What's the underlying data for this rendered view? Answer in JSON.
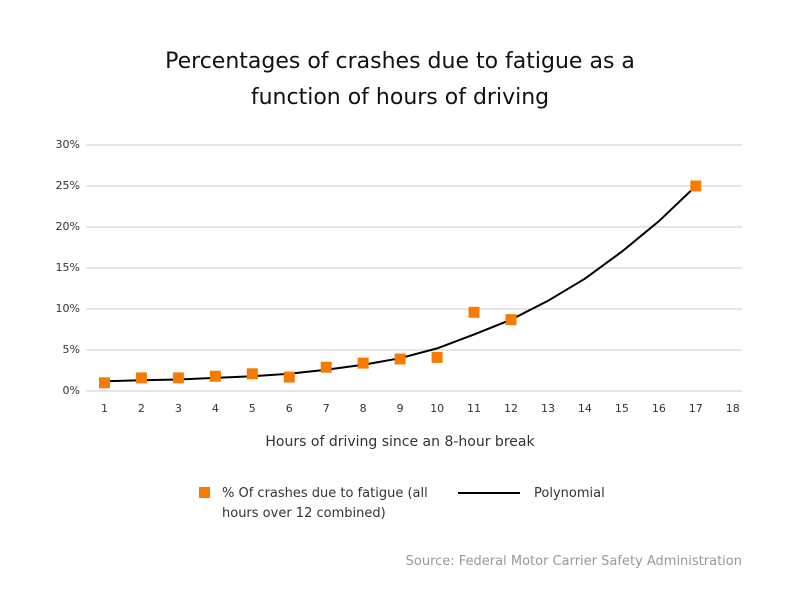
{
  "chart_data": {
    "type": "scatter",
    "title": "Percentages of crashes due to fatigue as a function of hours of driving",
    "x_label": "Hours of driving since an 8-hour break",
    "source": "Source: Federal Motor Carrier Safety Administration",
    "xlim": [
      0.5,
      18.25
    ],
    "xticks": [
      1,
      2,
      3,
      4,
      5,
      6,
      7,
      8,
      9,
      10,
      11,
      12,
      13,
      14,
      15,
      16,
      17,
      18
    ],
    "ylim": [
      0,
      30
    ],
    "yticks": [
      {
        "value": 0,
        "label": "0%"
      },
      {
        "value": 5,
        "label": "5%"
      },
      {
        "value": 10,
        "label": "10%"
      },
      {
        "value": 15,
        "label": "15%"
      },
      {
        "value": 20,
        "label": "20%"
      },
      {
        "value": 25,
        "label": "25%"
      },
      {
        "value": 30,
        "label": "30%"
      }
    ],
    "grid": true,
    "series": [
      {
        "name": "% Of crashes due to fatigue (all hours over 12 combined)",
        "type": "scatter",
        "color": "#f57c00",
        "x": [
          1,
          2,
          3,
          4,
          5,
          6,
          7,
          8,
          9,
          10,
          11,
          12,
          17
        ],
        "values": [
          1.0,
          1.6,
          1.6,
          1.8,
          2.1,
          1.7,
          2.9,
          3.4,
          3.9,
          4.1,
          9.6,
          8.7,
          25.0
        ]
      },
      {
        "name": "Polynomial",
        "type": "line",
        "color": "#000000",
        "x": [
          1,
          2,
          3,
          4,
          5,
          6,
          7,
          8,
          9,
          10,
          11,
          12,
          13,
          14,
          15,
          16,
          17
        ],
        "values": [
          1.2,
          1.3,
          1.4,
          1.6,
          1.8,
          2.1,
          2.6,
          3.2,
          4.0,
          5.2,
          6.9,
          8.7,
          11.0,
          13.7,
          17.0,
          20.7,
          25.0
        ]
      }
    ]
  }
}
